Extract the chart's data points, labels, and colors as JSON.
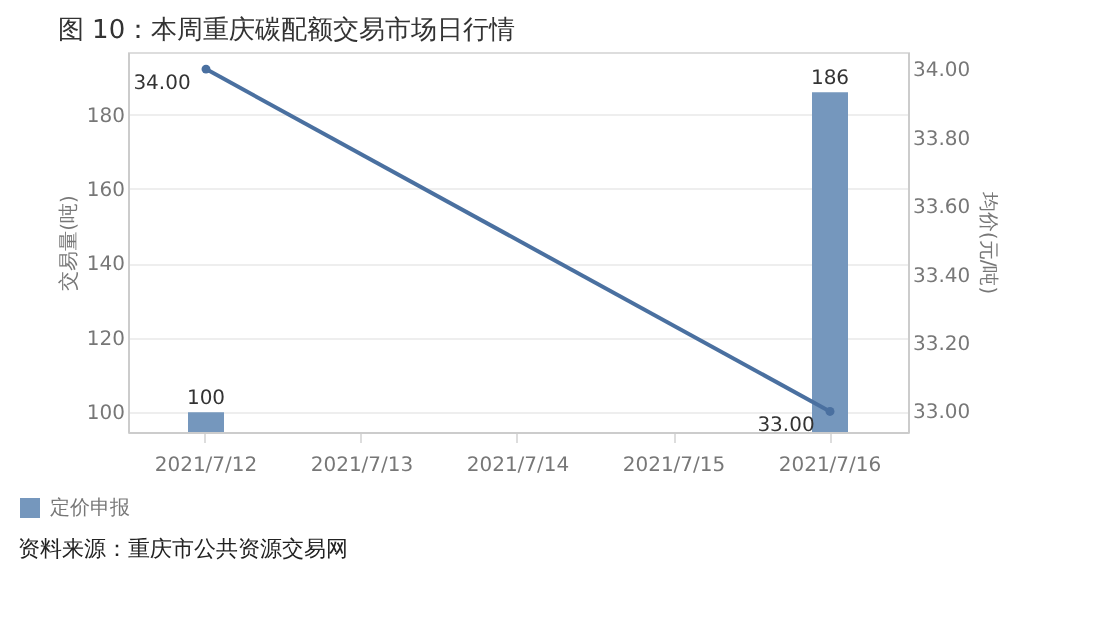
{
  "chart_data": {
    "type": "bar",
    "title": "图 10：本周重庆碳配额交易市场日行情",
    "categories": [
      "2021/7/12",
      "2021/7/13",
      "2021/7/14",
      "2021/7/15",
      "2021/7/16"
    ],
    "series": [
      {
        "name": "定价申报",
        "color": "#7597bd",
        "values": [
          100,
          null,
          null,
          null,
          186
        ]
      },
      {
        "type": "line",
        "axis": "y2",
        "color": "#4a70a0",
        "marker": "circle",
        "line_style": "solid",
        "values": [
          34.0,
          null,
          null,
          null,
          33.0
        ],
        "value_labels": [
          "34.00",
          null,
          null,
          null,
          "33.00"
        ]
      }
    ],
    "ylabel": "交易量(吨)",
    "y2label": "均价(元/吨)",
    "ylim": [
      94.7,
      196.8
    ],
    "yticks": [
      100,
      120,
      140,
      160,
      180
    ],
    "y2lim": [
      32.94,
      34.05
    ],
    "y2ticks": [
      {
        "value": 33,
        "label": "33.00"
      },
      {
        "value": 33.2,
        "label": "33.20"
      },
      {
        "value": 33.4,
        "label": "33.40"
      },
      {
        "value": 33.6,
        "label": "33.60"
      },
      {
        "value": 33.8,
        "label": "33.80"
      },
      {
        "value": 34,
        "label": "34.00"
      }
    ],
    "data_labels": true,
    "grid": "y",
    "legend": "bottom left",
    "annotations": [
      "资料来源：重庆市公共资源交易网"
    ]
  }
}
